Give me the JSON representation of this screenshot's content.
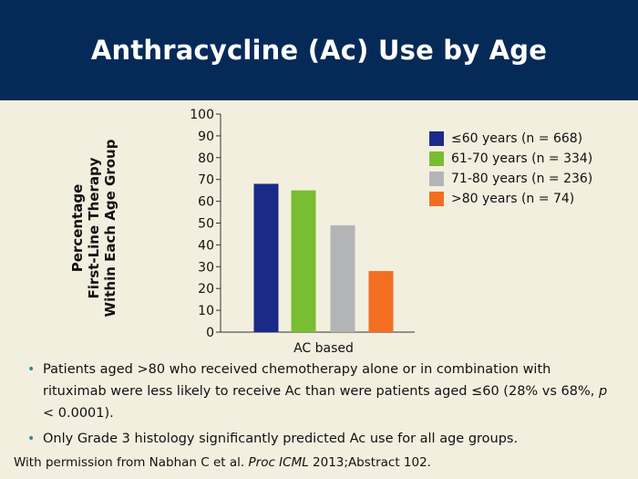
{
  "slide": {
    "title": "Anthracycline (Ac) Use by Age",
    "bullets": [
      {
        "parts": [
          {
            "text": "Patients aged >80 who received chemotherapy alone or in combination with rituximab were less likely to receive Ac than were patients aged ≤60 (28% vs 68%, "
          },
          {
            "text": "p",
            "italic": true
          },
          {
            "text": " < 0.0001)."
          }
        ]
      },
      {
        "parts": [
          {
            "text": "Only Grade 3 histology significantly predicted Ac use for all age groups."
          }
        ]
      }
    ],
    "citation": {
      "prefix": "With permission from Nabhan C et al. ",
      "journal": "Proc ICML",
      "suffix": " 2013;Abstract 102."
    }
  },
  "chart_data": {
    "type": "bar",
    "title": "",
    "categories": [
      "AC based"
    ],
    "ylabel_lines": [
      "Percentage",
      "First-Line Therapy",
      "Within Each Age Group"
    ],
    "ylim": [
      0,
      100
    ],
    "yticks": [
      0,
      10,
      20,
      30,
      40,
      50,
      60,
      70,
      80,
      90,
      100
    ],
    "grid": false,
    "legend_position": "right",
    "series": [
      {
        "name": "≤60 years (n = 668)",
        "color": "#1b2a87",
        "values": [
          68
        ]
      },
      {
        "name": "61-70 years (n = 334)",
        "color": "#79bd33",
        "values": [
          65
        ]
      },
      {
        "name": "71-80 years (n = 236)",
        "color": "#b3b4b6",
        "values": [
          49
        ]
      },
      {
        "name": ">80 years (n = 74)",
        "color": "#f26e21",
        "values": [
          28
        ]
      }
    ]
  }
}
